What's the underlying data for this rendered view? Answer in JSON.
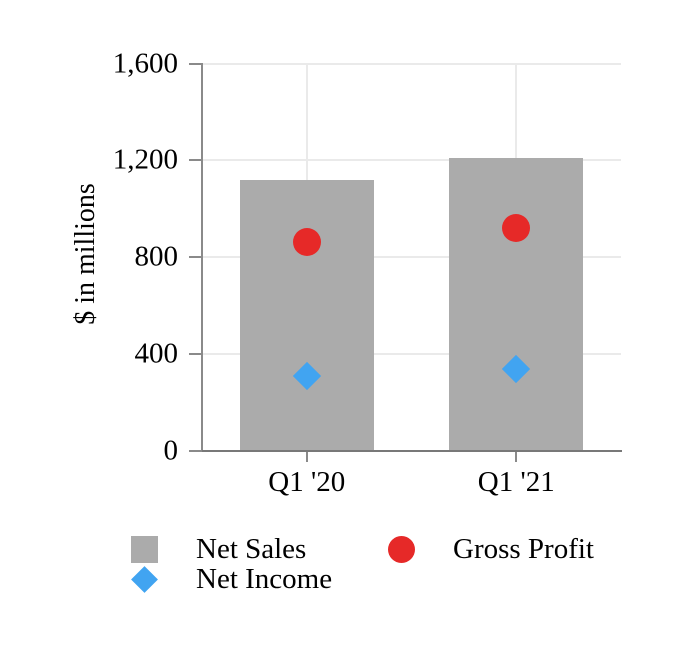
{
  "chart_data": {
    "type": "bar",
    "categories": [
      "Q1 '20",
      "Q1 '21"
    ],
    "series": [
      {
        "name": "Net Sales",
        "type": "bar",
        "marker": "square",
        "color": "#ababab",
        "values": [
          1120,
          1210
        ]
      },
      {
        "name": "Gross Profit",
        "type": "scatter",
        "marker": "circle",
        "color": "#e62928",
        "values": [
          860,
          920
        ]
      },
      {
        "name": "Net Income",
        "type": "scatter",
        "marker": "diamond",
        "color": "#41a4f1",
        "values": [
          310,
          335
        ]
      }
    ],
    "title": "",
    "xlabel": "",
    "ylabel": "$ in millions",
    "ylim": [
      0,
      1600
    ],
    "yticks": [
      0,
      400,
      800,
      1200,
      1600
    ],
    "ytick_labels": [
      "0",
      "400",
      "800",
      "1,200",
      "1,600"
    ],
    "grid": true,
    "legend_position": "bottom"
  },
  "legend": {
    "items": [
      {
        "label": "Net Sales",
        "swatch": "square",
        "color": "#ababab"
      },
      {
        "label": "Net Income",
        "swatch": "diamond",
        "color": "#41a4f1"
      },
      {
        "label": "Gross Profit",
        "swatch": "circle",
        "color": "#e62928"
      }
    ]
  },
  "colors": {
    "background": "#ffffff",
    "gridline": "#eaeaea",
    "axis": "#8a8a8a",
    "text": "#000000"
  }
}
